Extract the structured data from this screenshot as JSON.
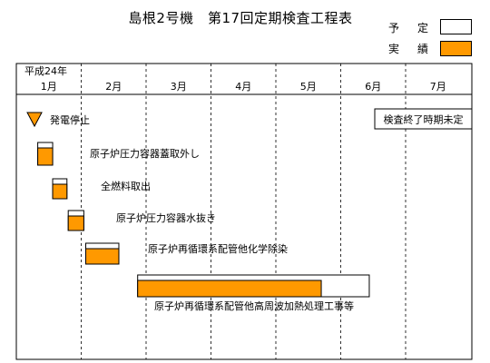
{
  "title": "島根2号機　第17回定期検査工程表",
  "legend": {
    "planned_label": "予　定",
    "actual_label": "実　績",
    "planned_color": "#ffffff",
    "actual_color": "#ff9900"
  },
  "note": "検査終了時期未定",
  "chart_data": {
    "type": "gantt",
    "title": "島根2号機　第17回定期検査工程表",
    "year_label": "平成24年",
    "months": [
      "1月",
      "2月",
      "3月",
      "4月",
      "5月",
      "6月",
      "7月"
    ],
    "x_unit": "month (start of January = 0)",
    "xlim": [
      0,
      7
    ],
    "milestones": [
      {
        "label": "発電停止",
        "at": 0.28
      }
    ],
    "tasks": [
      {
        "label": "原子炉圧力容器蓋取外し",
        "planned": [
          0.33,
          0.56
        ],
        "actual": [
          0.33,
          0.56
        ]
      },
      {
        "label": "全燃料取出",
        "planned": [
          0.56,
          0.78
        ],
        "actual": [
          0.56,
          0.78
        ]
      },
      {
        "label": "原子炉圧力容器水抜き",
        "planned": [
          0.8,
          1.04
        ],
        "actual": [
          0.8,
          1.04
        ]
      },
      {
        "label": "原子炉再循環系配管他化学除染",
        "planned": [
          1.07,
          1.58
        ],
        "actual": [
          1.07,
          1.58
        ]
      },
      {
        "label": "原子炉再循環系配管他高周波加熱処理工事等",
        "planned": [
          1.87,
          5.44
        ],
        "actual": [
          1.87,
          4.7
        ]
      }
    ],
    "grid": "dashed vertical lines at month boundaries"
  }
}
